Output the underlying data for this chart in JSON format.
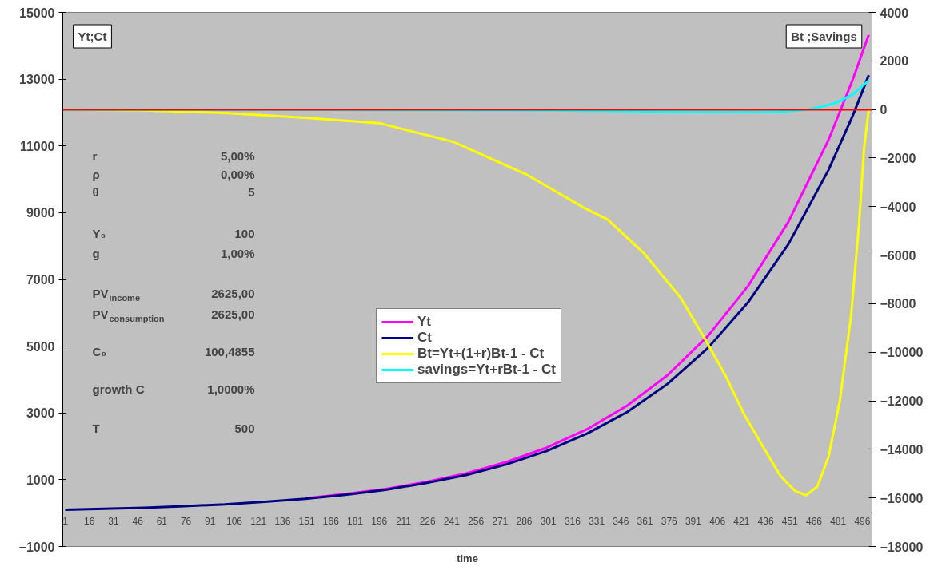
{
  "chart_data": {
    "type": "line",
    "xlabel": "time",
    "ylabel": "Yt;Ct",
    "y2label": "Bt ;Savings",
    "xlim": [
      -0.5,
      502
    ],
    "xticks": [
      1,
      16,
      31,
      46,
      61,
      76,
      91,
      106,
      121,
      136,
      151,
      166,
      181,
      196,
      211,
      226,
      241,
      256,
      271,
      286,
      301,
      316,
      331,
      346,
      361,
      376,
      391,
      406,
      421,
      436,
      451,
      466,
      481,
      496
    ],
    "ylim": [
      -1000,
      15000
    ],
    "yticks": [
      -1000,
      1000,
      3000,
      5000,
      7000,
      9000,
      11000,
      13000,
      15000
    ],
    "y2lim": [
      -18000,
      4000
    ],
    "y2ticks": [
      -18000,
      -16000,
      -14000,
      -12000,
      -10000,
      -8000,
      -6000,
      -4000,
      -2000,
      0,
      2000,
      4000
    ],
    "legend": "center",
    "series": [
      {
        "name": "Yt",
        "color": "#ff00ff",
        "x": [
          150,
          175,
          200,
          225,
          250,
          275,
          300,
          325,
          350,
          375,
          400,
          425,
          450,
          475,
          490,
          500
        ],
        "values": [
          440,
          570,
          720,
          930,
          1190,
          1530,
          1960,
          2510,
          3220,
          4130,
          5300,
          6800,
          8720,
          11180,
          12980,
          14330
        ]
      },
      {
        "name": "Ct",
        "color": "#000080",
        "x": [
          1,
          25,
          50,
          75,
          100,
          125,
          150,
          175,
          200,
          225,
          250,
          275,
          300,
          325,
          350,
          375,
          400,
          425,
          450,
          475,
          490,
          500
        ],
        "values": [
          100,
          130,
          160,
          210,
          260,
          340,
          430,
          550,
          700,
          900,
          1140,
          1460,
          1860,
          2380,
          3030,
          3870,
          4940,
          6310,
          8050,
          10280,
          11900,
          13120
        ]
      },
      {
        "name": "Bt=Yt+(1+r)Bt-1 - Ct",
        "color": "#ffff00",
        "axis": "y2",
        "x": [
          1,
          50,
          100,
          150,
          196,
          242,
          288,
          324,
          338,
          360,
          383,
          398,
          411,
          422,
          434,
          445,
          454,
          461,
          468,
          475,
          482,
          489,
          494,
          497,
          500
        ],
        "values": [
          0,
          -40,
          -140,
          -340,
          -560,
          -1330,
          -2700,
          -4080,
          -4540,
          -5900,
          -7740,
          -9420,
          -10960,
          -12480,
          -13860,
          -15080,
          -15700,
          -15890,
          -15540,
          -14310,
          -12020,
          -8500,
          -4690,
          -1640,
          0
        ]
      },
      {
        "name": "savings=Yt+rBt-1 - Ct",
        "color": "#00ffff",
        "axis": "y2",
        "x": [
          1,
          100,
          300,
          350,
          400,
          430,
          450,
          462,
          470,
          480,
          490,
          500
        ],
        "values": [
          0,
          0,
          -40,
          -70,
          -100,
          -110,
          -70,
          0,
          100,
          290,
          620,
          1190
        ]
      }
    ],
    "ref_lines": [
      {
        "axis": "y2",
        "value": 0,
        "color": "#ff0000"
      }
    ],
    "annotations": [
      "r\t5,00%",
      "ρ\t0,00%",
      "θ\t5",
      "Y₀\t100",
      "g\t1,00%",
      "PV$_{income}$\t2625,00",
      "PV$_{consumption}$\t2625,00",
      "C₀\t100,4855",
      "growth C\t1,0000%",
      "T\t500"
    ]
  }
}
